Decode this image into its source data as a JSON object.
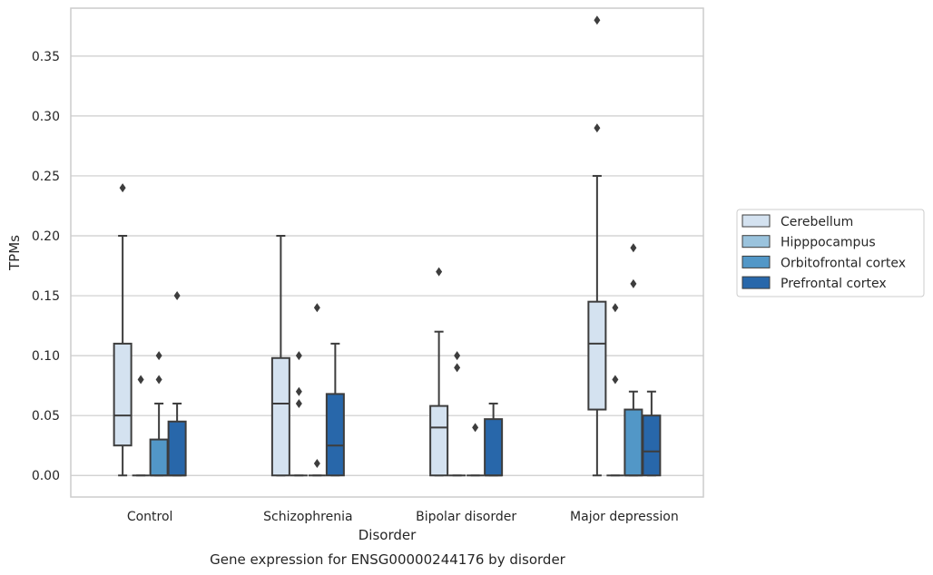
{
  "chart_data": {
    "type": "box",
    "title": "",
    "caption": "Gene expression for ENSG00000244176 by disorder",
    "xlabel": "Disorder",
    "ylabel": "TPMs",
    "ylim": [
      -0.018,
      0.39
    ],
    "yticks": [
      "0.00",
      "0.05",
      "0.10",
      "0.15",
      "0.20",
      "0.25",
      "0.30",
      "0.35"
    ],
    "grid": "horizontal",
    "legend_position": "right",
    "categories": [
      "Control",
      "Schizophrenia",
      "Bipolar disorder",
      "Major depression"
    ],
    "series": [
      {
        "name": "Cerebellum",
        "color": "#d4e2f0",
        "boxes": [
          {
            "whislo": 0.0,
            "q1": 0.025,
            "med": 0.05,
            "q3": 0.11,
            "whishi": 0.2,
            "fliers": [
              0.24
            ]
          },
          {
            "whislo": 0.0,
            "q1": 0.0,
            "med": 0.06,
            "q3": 0.098,
            "whishi": 0.2,
            "fliers": []
          },
          {
            "whislo": 0.0,
            "q1": 0.0,
            "med": 0.04,
            "q3": 0.058,
            "whishi": 0.12,
            "fliers": [
              0.17
            ]
          },
          {
            "whislo": 0.0,
            "q1": 0.055,
            "med": 0.11,
            "q3": 0.145,
            "whishi": 0.25,
            "fliers": [
              0.29,
              0.38
            ]
          }
        ]
      },
      {
        "name": "Hipppocampus",
        "color": "#9ac3dd",
        "boxes": [
          {
            "whislo": 0.0,
            "q1": 0.0,
            "med": 0.0,
            "q3": 0.0,
            "whishi": 0.0,
            "fliers": [
              0.08
            ]
          },
          {
            "whislo": 0.0,
            "q1": 0.0,
            "med": 0.0,
            "q3": 0.0,
            "whishi": 0.0,
            "fliers": [
              0.06,
              0.07,
              0.1
            ]
          },
          {
            "whislo": 0.0,
            "q1": 0.0,
            "med": 0.0,
            "q3": 0.0,
            "whishi": 0.0,
            "fliers": [
              0.09,
              0.1
            ]
          },
          {
            "whislo": 0.0,
            "q1": 0.0,
            "med": 0.0,
            "q3": 0.0,
            "whishi": 0.0,
            "fliers": [
              0.08,
              0.14
            ]
          }
        ]
      },
      {
        "name": "Orbitofrontal cortex",
        "color": "#5297c7",
        "boxes": [
          {
            "whislo": 0.0,
            "q1": 0.0,
            "med": 0.0,
            "q3": 0.03,
            "whishi": 0.06,
            "fliers": [
              0.08,
              0.1
            ]
          },
          {
            "whislo": 0.0,
            "q1": 0.0,
            "med": 0.0,
            "q3": 0.0,
            "whishi": 0.0,
            "fliers": [
              0.01,
              0.14
            ]
          },
          {
            "whislo": 0.0,
            "q1": 0.0,
            "med": 0.0,
            "q3": 0.0,
            "whishi": 0.0,
            "fliers": [
              0.04
            ]
          },
          {
            "whislo": 0.0,
            "q1": 0.0,
            "med": 0.0,
            "q3": 0.055,
            "whishi": 0.07,
            "fliers": [
              0.16,
              0.19
            ]
          }
        ]
      },
      {
        "name": "Prefrontal cortex",
        "color": "#2867aa",
        "boxes": [
          {
            "whislo": 0.0,
            "q1": 0.0,
            "med": 0.0,
            "q3": 0.045,
            "whishi": 0.06,
            "fliers": [
              0.15
            ]
          },
          {
            "whislo": 0.0,
            "q1": 0.0,
            "med": 0.025,
            "q3": 0.068,
            "whishi": 0.11,
            "fliers": []
          },
          {
            "whislo": 0.0,
            "q1": 0.0,
            "med": 0.0,
            "q3": 0.047,
            "whishi": 0.06,
            "fliers": []
          },
          {
            "whislo": 0.0,
            "q1": 0.0,
            "med": 0.02,
            "q3": 0.05,
            "whishi": 0.07,
            "fliers": []
          }
        ]
      }
    ]
  }
}
